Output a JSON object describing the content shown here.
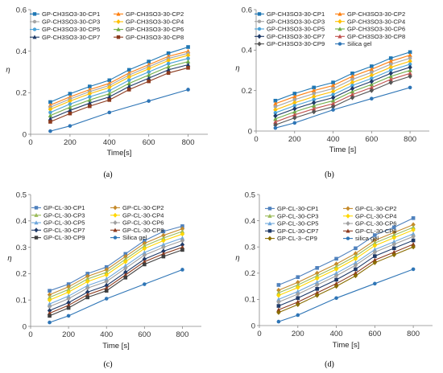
{
  "captions": [
    "(a)",
    "(b)",
    "(c)",
    "(d)"
  ],
  "chart_data": [
    {
      "type": "line",
      "panel": "a",
      "xlabel": "Time[s]",
      "ylabel": "η",
      "xlim": [
        0,
        900
      ],
      "ylim": [
        0,
        0.6
      ],
      "xticks": [
        0,
        200,
        400,
        600,
        800
      ],
      "yticks": [
        0,
        0.2,
        0.4,
        0.6
      ],
      "grid": false,
      "legend": "top, two columns",
      "x": [
        100,
        200,
        300,
        400,
        500,
        600,
        700,
        800
      ],
      "series": [
        {
          "name": "GP-CH3SO3-30-CP1",
          "color": "#1f77b4",
          "marker": "square",
          "values": [
            0.155,
            0.195,
            0.23,
            0.26,
            0.31,
            0.35,
            0.39,
            0.42
          ]
        },
        {
          "name": "GP-CH3SO3-30-CP2",
          "color": "#ff7f0e",
          "marker": "triangle",
          "values": [
            0.14,
            0.18,
            0.215,
            0.245,
            0.295,
            0.335,
            0.375,
            0.4
          ]
        },
        {
          "name": "GP-CH3SO3-30-CP3",
          "color": "#a5a5a5",
          "marker": "circle",
          "values": [
            0.13,
            0.17,
            0.205,
            0.235,
            0.285,
            0.325,
            0.365,
            0.39
          ]
        },
        {
          "name": "GP-CH3SO3-30-CP4",
          "color": "#ffc000",
          "marker": "diamond",
          "values": [
            0.12,
            0.16,
            0.195,
            0.225,
            0.275,
            0.315,
            0.355,
            0.38
          ]
        },
        {
          "name": "GP-CH3SO3-30-CP5",
          "color": "#4ba3d9",
          "marker": "circle",
          "values": [
            0.105,
            0.145,
            0.18,
            0.21,
            0.26,
            0.3,
            0.34,
            0.365
          ]
        },
        {
          "name": "GP-CH3SO3-30-CP6",
          "color": "#70ad47",
          "marker": "triangle",
          "values": [
            0.09,
            0.13,
            0.165,
            0.195,
            0.245,
            0.285,
            0.325,
            0.35
          ]
        },
        {
          "name": "GP-CH3SO3-30-CP7",
          "color": "#1f3a68",
          "marker": "triangle",
          "values": [
            0.075,
            0.115,
            0.15,
            0.18,
            0.23,
            0.27,
            0.31,
            0.335
          ]
        },
        {
          "name": "GP-CH3SO3-30-CP8",
          "color": "#8c3a1e",
          "marker": "square",
          "values": [
            0.06,
            0.1,
            0.135,
            0.165,
            0.215,
            0.255,
            0.295,
            0.32
          ]
        },
        {
          "name": "",
          "color": "#2e75b6",
          "marker": "circle",
          "x": [
            100,
            200,
            400,
            600,
            800
          ],
          "values": [
            0.015,
            0.04,
            0.105,
            0.16,
            0.215
          ]
        }
      ]
    },
    {
      "type": "line",
      "panel": "b",
      "xlabel": "Time [s]",
      "ylabel": "η",
      "xlim": [
        0,
        900
      ],
      "ylim": [
        0,
        0.6
      ],
      "xticks": [
        0,
        200,
        400,
        600,
        800
      ],
      "yticks": [
        0,
        0.2,
        0.4,
        0.6
      ],
      "grid": false,
      "legend": "top, two columns",
      "x": [
        100,
        200,
        300,
        400,
        500,
        600,
        700,
        800
      ],
      "series": [
        {
          "name": "GP-CH3SO3-30-CP1",
          "color": "#1f77b4",
          "marker": "square",
          "values": [
            0.15,
            0.185,
            0.215,
            0.24,
            0.285,
            0.32,
            0.36,
            0.39
          ]
        },
        {
          "name": "GP-CH3SO3-30-CP2",
          "color": "#ff7f0e",
          "marker": "triangle",
          "values": [
            0.135,
            0.17,
            0.2,
            0.225,
            0.27,
            0.305,
            0.345,
            0.375
          ]
        },
        {
          "name": "GP-CH3SO3-30-CP3",
          "color": "#a5a5a5",
          "marker": "circle",
          "values": [
            0.12,
            0.155,
            0.185,
            0.21,
            0.255,
            0.29,
            0.33,
            0.36
          ]
        },
        {
          "name": "GP-CH3SO3-30-CP4",
          "color": "#ffc000",
          "marker": "diamond",
          "values": [
            0.105,
            0.14,
            0.17,
            0.195,
            0.24,
            0.275,
            0.315,
            0.345
          ]
        },
        {
          "name": "GP-CH3SO3-30-CP5",
          "color": "#4ba3d9",
          "marker": "circle",
          "values": [
            0.09,
            0.125,
            0.155,
            0.18,
            0.225,
            0.26,
            0.3,
            0.33
          ]
        },
        {
          "name": "GP-CH3SO3-30-CP6",
          "color": "#70ad47",
          "marker": "triangle",
          "values": [
            0.06,
            0.095,
            0.125,
            0.15,
            0.195,
            0.23,
            0.27,
            0.3
          ]
        },
        {
          "name": "GP-CH3SO3-30-CP7",
          "color": "#1f3a68",
          "marker": "diamond",
          "values": [
            0.075,
            0.11,
            0.14,
            0.165,
            0.21,
            0.245,
            0.285,
            0.315
          ]
        },
        {
          "name": "GP-CH3SO3-30-CP8",
          "color": "#c0504d",
          "marker": "triangle",
          "values": [
            0.045,
            0.08,
            0.11,
            0.135,
            0.18,
            0.215,
            0.255,
            0.285
          ]
        },
        {
          "name": "GP-CH3SO3-30-CP9",
          "color": "#555555",
          "marker": "diamond",
          "values": [
            0.03,
            0.065,
            0.095,
            0.12,
            0.165,
            0.2,
            0.24,
            0.27
          ]
        },
        {
          "name": "Silica gel",
          "color": "#2e75b6",
          "marker": "circle",
          "x": [
            100,
            200,
            400,
            600,
            800
          ],
          "values": [
            0.015,
            0.04,
            0.105,
            0.16,
            0.215
          ]
        }
      ]
    },
    {
      "type": "line",
      "panel": "c",
      "xlabel": "Time [s]",
      "ylabel": "η",
      "xlim": [
        0,
        900
      ],
      "ylim": [
        0,
        0.5
      ],
      "xticks": [
        0,
        200,
        400,
        600,
        800
      ],
      "yticks": [
        0,
        0.1,
        0.2,
        0.3,
        0.4,
        0.5
      ],
      "grid": false,
      "legend": "top, two columns",
      "x": [
        100,
        200,
        300,
        400,
        500,
        600,
        700,
        800
      ],
      "series": [
        {
          "name": "GP-CL-30-CP1",
          "color": "#4f81bd",
          "marker": "square",
          "values": [
            0.135,
            0.16,
            0.2,
            0.225,
            0.275,
            0.325,
            0.36,
            0.38
          ]
        },
        {
          "name": "GP-CL-30-CP2",
          "color": "#c58a2a",
          "marker": "diamond",
          "values": [
            0.12,
            0.15,
            0.19,
            0.215,
            0.265,
            0.315,
            0.345,
            0.37
          ]
        },
        {
          "name": "GP-CL-30-CP3",
          "color": "#9bbb59",
          "marker": "triangle",
          "values": [
            0.11,
            0.14,
            0.18,
            0.205,
            0.255,
            0.305,
            0.335,
            0.36
          ]
        },
        {
          "name": "GP-CL-30-CP4",
          "color": "#ffd700",
          "marker": "diamond",
          "values": [
            0.1,
            0.13,
            0.17,
            0.195,
            0.245,
            0.295,
            0.325,
            0.35
          ]
        },
        {
          "name": "GP-CL-30-CP5",
          "color": "#6fa8dc",
          "marker": "triangle",
          "values": [
            0.085,
            0.115,
            0.155,
            0.18,
            0.23,
            0.28,
            0.31,
            0.335
          ]
        },
        {
          "name": "GP-CL-30-CP6",
          "color": "#a0a0a0",
          "marker": "diamond",
          "values": [
            0.075,
            0.105,
            0.145,
            0.17,
            0.22,
            0.27,
            0.3,
            0.325
          ]
        },
        {
          "name": "GP-CL-30-CP7",
          "color": "#1f3a68",
          "marker": "diamond",
          "values": [
            0.06,
            0.09,
            0.13,
            0.155,
            0.205,
            0.255,
            0.285,
            0.31
          ]
        },
        {
          "name": "GP-CL-30-CP8",
          "color": "#8c3a1e",
          "marker": "triangle",
          "values": [
            0.05,
            0.08,
            0.12,
            0.145,
            0.195,
            0.245,
            0.275,
            0.3
          ]
        },
        {
          "name": "GP-CL-30-CP9",
          "color": "#404040",
          "marker": "square",
          "values": [
            0.04,
            0.07,
            0.11,
            0.135,
            0.185,
            0.235,
            0.265,
            0.29
          ]
        },
        {
          "name": "Silica gel",
          "color": "#2e75b6",
          "marker": "circle",
          "x": [
            100,
            200,
            400,
            600,
            800
          ],
          "values": [
            0.015,
            0.04,
            0.105,
            0.16,
            0.215
          ]
        }
      ]
    },
    {
      "type": "line",
      "panel": "d",
      "xlabel": "Time [s]",
      "ylabel": "η",
      "xlim": [
        0,
        900
      ],
      "ylim": [
        0,
        0.5
      ],
      "xticks": [
        0,
        200,
        400,
        600,
        800
      ],
      "yticks": [
        0,
        0.1,
        0.2,
        0.3,
        0.4,
        0.5
      ],
      "grid": false,
      "legend": "top, two columns",
      "x": [
        100,
        200,
        300,
        400,
        500,
        600,
        700,
        800
      ],
      "series": [
        {
          "name": "GP-CL-30-CP1",
          "color": "#4f81bd",
          "marker": "square",
          "values": [
            0.155,
            0.185,
            0.22,
            0.255,
            0.295,
            0.345,
            0.375,
            0.41
          ]
        },
        {
          "name": "GP-CL-30-CP2",
          "color": "#c58a2a",
          "marker": "diamond",
          "values": [
            0.135,
            0.165,
            0.2,
            0.235,
            0.275,
            0.325,
            0.355,
            0.385
          ]
        },
        {
          "name": "GP-CL-30-CP3",
          "color": "#9bbb59",
          "marker": "triangle",
          "values": [
            0.125,
            0.155,
            0.19,
            0.225,
            0.265,
            0.315,
            0.345,
            0.375
          ]
        },
        {
          "name": "GP-CL-30-CP4",
          "color": "#ffd700",
          "marker": "diamond",
          "values": [
            0.115,
            0.145,
            0.18,
            0.215,
            0.255,
            0.305,
            0.335,
            0.365
          ]
        },
        {
          "name": "GP-CL-30-CP5",
          "color": "#6fa8dc",
          "marker": "triangle",
          "values": [
            0.1,
            0.13,
            0.165,
            0.2,
            0.24,
            0.29,
            0.32,
            0.35
          ]
        },
        {
          "name": "GP-CL-30-CP6",
          "color": "#a0a0a0",
          "marker": "diamond",
          "values": [
            0.09,
            0.12,
            0.155,
            0.19,
            0.23,
            0.28,
            0.31,
            0.34
          ]
        },
        {
          "name": "GP-CL-30-CP7",
          "color": "#1f3a68",
          "marker": "square",
          "values": [
            0.075,
            0.105,
            0.14,
            0.175,
            0.215,
            0.265,
            0.295,
            0.325
          ]
        },
        {
          "name": "GP-CL-30-CP8",
          "color": "#8c3a1e",
          "marker": "triangle",
          "values": [
            0.06,
            0.09,
            0.125,
            0.16,
            0.2,
            0.25,
            0.28,
            0.31
          ]
        },
        {
          "name": "GP-CL-3--CP9",
          "color": "#8a6d00",
          "marker": "diamond",
          "values": [
            0.05,
            0.08,
            0.115,
            0.15,
            0.19,
            0.24,
            0.27,
            0.3
          ]
        },
        {
          "name": "silica gel",
          "color": "#2e75b6",
          "marker": "circle",
          "x": [
            100,
            200,
            400,
            600,
            800
          ],
          "values": [
            0.015,
            0.04,
            0.105,
            0.16,
            0.215
          ]
        }
      ]
    }
  ]
}
